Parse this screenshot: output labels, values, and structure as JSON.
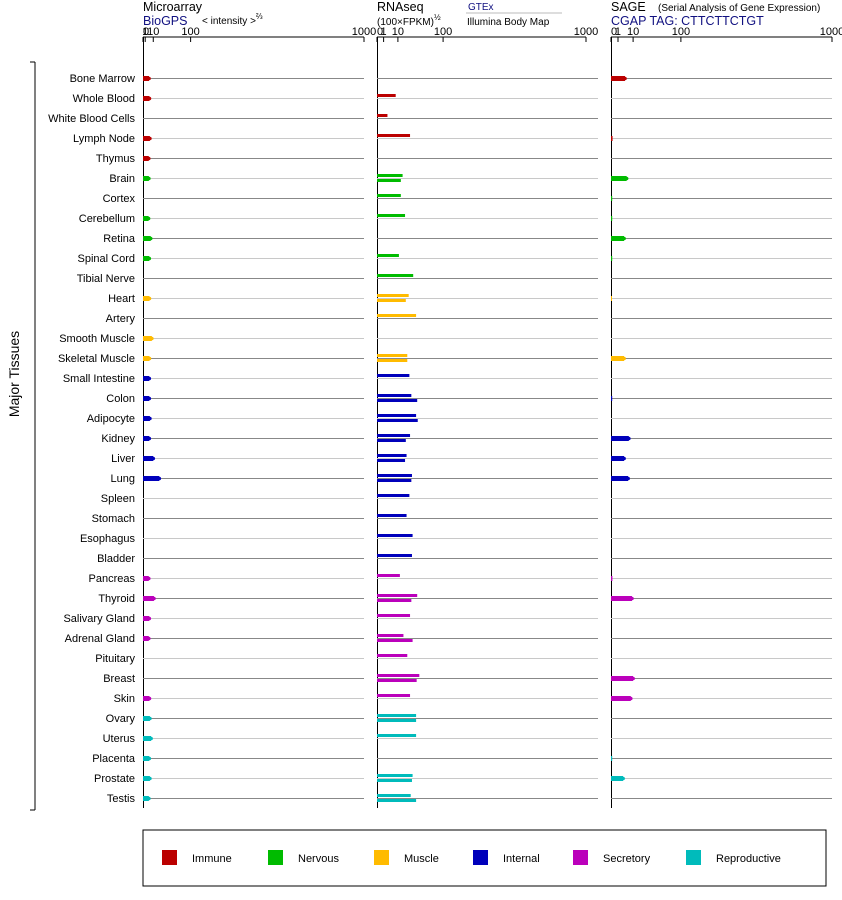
{
  "colors": {
    "Immune": "#bb0000",
    "Nervous": "#00bb00",
    "Muscle": "#ffbb00",
    "Internal": "#0000bb",
    "Secretory": "#bb00bb",
    "Reproductive": "#00bbbb"
  },
  "side_label": "Major Tissues",
  "panels": [
    {
      "title": "Microarray",
      "subtitle": "BioGPS",
      "unit": "< intensity >",
      "unit_exp": "⅔",
      "ticks": [
        "0",
        "1",
        "10",
        "100",
        "1000"
      ]
    },
    {
      "title": "RNAseq",
      "unit": "(100×FPKM)",
      "unit_exp": "½",
      "source_link": "GTEx",
      "source_note": "Illumina Body Map",
      "ticks": [
        "0",
        "1",
        "10",
        "100",
        "1000"
      ]
    },
    {
      "title": "SAGE",
      "note": "(Serial Analysis of Gene Expression)",
      "tag": "CGAP TAG: CTTCTTCTGT",
      "ticks": [
        "0",
        "1",
        "10",
        "100",
        "1000"
      ]
    }
  ],
  "legend": [
    {
      "name": "Immune",
      "color": "#bb0000"
    },
    {
      "name": "Nervous",
      "color": "#00bb00"
    },
    {
      "name": "Muscle",
      "color": "#ffbb00"
    },
    {
      "name": "Internal",
      "color": "#0000bb"
    },
    {
      "name": "Secretory",
      "color": "#bb00bb"
    },
    {
      "name": "Reproductive",
      "color": "#00bbbb"
    }
  ],
  "chart_data": {
    "type": "bar",
    "orientation": "horizontal",
    "xscale": "power",
    "xlim": [
      0,
      1000
    ],
    "grid": true,
    "legend_position": "bottom",
    "tissues": [
      {
        "name": "Bone Marrow",
        "group": "Immune",
        "micro": 4.5,
        "rna": [],
        "sage": 4
      },
      {
        "name": "Whole Blood",
        "group": "Immune",
        "micro": 5,
        "rna": [
          8
        ],
        "sage": null
      },
      {
        "name": "White Blood Cells",
        "group": "Immune",
        "micro": null,
        "rna": [
          2.5
        ],
        "sage": null
      },
      {
        "name": "Lymph Node",
        "group": "Immune",
        "micro": 5.5,
        "rna": [
          25
        ],
        "sage": 0.05
      },
      {
        "name": "Thymus",
        "group": "Immune",
        "micro": 4.2,
        "rna": [],
        "sage": null
      },
      {
        "name": "Brain",
        "group": "Nervous",
        "micro": 4.3,
        "rna": [
          15,
          13
        ],
        "sage": 5
      },
      {
        "name": "Cortex",
        "group": "Nervous",
        "micro": null,
        "rna": [
          13
        ],
        "sage": 0.03
      },
      {
        "name": "Cerebellum",
        "group": "Nervous",
        "micro": 4,
        "rna": [
          18
        ],
        "sage": 0.03
      },
      {
        "name": "Retina",
        "group": "Nervous",
        "micro": 6.5,
        "rna": [],
        "sage": 3.5
      },
      {
        "name": "Spinal Cord",
        "group": "Nervous",
        "micro": 4.8,
        "rna": [
          11
        ],
        "sage": 0.03
      },
      {
        "name": "Tibial Nerve",
        "group": "Nervous",
        "micro": null,
        "rna": [
          30
        ],
        "sage": null
      },
      {
        "name": "Heart",
        "group": "Muscle",
        "micro": 5,
        "rna": [
          23,
          19
        ],
        "sage": 0.02
      },
      {
        "name": "Artery",
        "group": "Muscle",
        "micro": null,
        "rna": [
          35
        ],
        "sage": null
      },
      {
        "name": "Smooth Muscle",
        "group": "Muscle",
        "micro": 8,
        "rna": [],
        "sage": null
      },
      {
        "name": "Skeletal Muscle",
        "group": "Muscle",
        "micro": 5,
        "rna": [
          21,
          21
        ],
        "sage": 3.5
      },
      {
        "name": "Small Intestine",
        "group": "Internal",
        "micro": 4.8,
        "rna": [
          24
        ],
        "sage": null
      },
      {
        "name": "Colon",
        "group": "Internal",
        "micro": 4.8,
        "rna": [
          27,
          37
        ],
        "sage": 0.03
      },
      {
        "name": "Adipocyte",
        "group": "Internal",
        "micro": 5.5,
        "rna": [
          35,
          38
        ],
        "sage": null
      },
      {
        "name": "Kidney",
        "group": "Internal",
        "micro": 4.8,
        "rna": [
          25,
          19
        ],
        "sage": 6.5
      },
      {
        "name": "Liver",
        "group": "Internal",
        "micro": 10,
        "rna": [
          20,
          18
        ],
        "sage": 3.5
      },
      {
        "name": "Lung",
        "group": "Internal",
        "micro": 20,
        "rna": [
          28,
          27
        ],
        "sage": 6
      },
      {
        "name": "Spleen",
        "group": "Internal",
        "micro": null,
        "rna": [
          24
        ],
        "sage": null
      },
      {
        "name": "Stomach",
        "group": "Internal",
        "micro": null,
        "rna": [
          20
        ],
        "sage": null
      },
      {
        "name": "Esophagus",
        "group": "Internal",
        "micro": null,
        "rna": [
          29
        ],
        "sage": null
      },
      {
        "name": "Bladder",
        "group": "Internal",
        "micro": null,
        "rna": [
          28
        ],
        "sage": null
      },
      {
        "name": "Pancreas",
        "group": "Secretory",
        "micro": 4.2,
        "rna": [
          12
        ],
        "sage": 0.04
      },
      {
        "name": "Thyroid",
        "group": "Secretory",
        "micro": 11,
        "rna": [
          37,
          27
        ],
        "sage": 9
      },
      {
        "name": "Salivary Gland",
        "group": "Secretory",
        "micro": 4.8,
        "rna": [
          25
        ],
        "sage": null
      },
      {
        "name": "Adrenal Gland",
        "group": "Secretory",
        "micro": 4.2,
        "rna": [
          16,
          29
        ],
        "sage": null
      },
      {
        "name": "Pituitary",
        "group": "Secretory",
        "micro": null,
        "rna": [
          21
        ],
        "sage": null
      },
      {
        "name": "Breast",
        "group": "Secretory",
        "micro": null,
        "rna": [
          41,
          36
        ],
        "sage": 10
      },
      {
        "name": "Skin",
        "group": "Secretory",
        "micro": 5,
        "rna": [
          25
        ],
        "sage": 8
      },
      {
        "name": "Ovary",
        "group": "Reproductive",
        "micro": 5.5,
        "rna": [
          35,
          35
        ],
        "sage": null
      },
      {
        "name": "Uterus",
        "group": "Reproductive",
        "micro": 7,
        "rna": [
          35
        ],
        "sage": null
      },
      {
        "name": "Placenta",
        "group": "Reproductive",
        "micro": 4.8,
        "rna": [],
        "sage": 0.03
      },
      {
        "name": "Prostate",
        "group": "Reproductive",
        "micro": 5.5,
        "rna": [
          29,
          28
        ],
        "sage": 3
      },
      {
        "name": "Testis",
        "group": "Reproductive",
        "micro": 4.3,
        "rna": [
          26,
          35
        ],
        "sage": null
      }
    ]
  }
}
